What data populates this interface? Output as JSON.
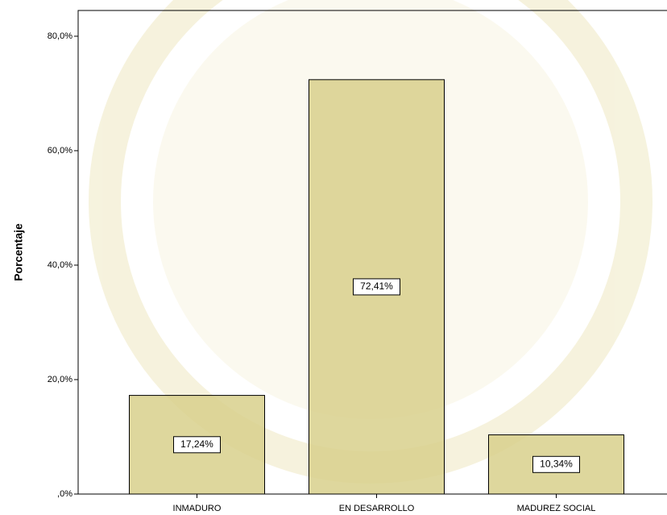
{
  "chart_data": {
    "type": "bar",
    "y_label": "Porcentaje",
    "categories": [
      "INMADURO",
      "EN DESARROLLO",
      "MADUREZ SOCIAL"
    ],
    "values": [
      17.24,
      72.41,
      10.34
    ],
    "value_labels": [
      "17,24%",
      "72,41%",
      "10,34%"
    ],
    "color": "#d8d08c",
    "ylim": [
      0,
      84.5
    ],
    "yticks": [
      {
        "value": 0,
        "label": ",0%"
      },
      {
        "value": 20,
        "label": "20,0%"
      },
      {
        "value": 40,
        "label": "40,0%"
      },
      {
        "value": 60,
        "label": "60,0%"
      },
      {
        "value": 80,
        "label": "80,0%"
      }
    ]
  }
}
